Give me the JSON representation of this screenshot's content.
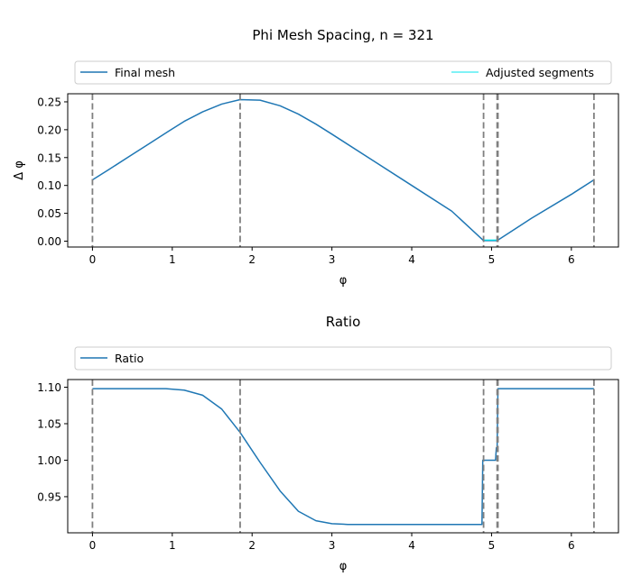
{
  "chart_data": [
    {
      "type": "line",
      "title": "Phi Mesh Spacing, n = 321",
      "xlabel": "φ",
      "ylabel": "Δ φ",
      "xlim": [
        -0.31,
        6.59
      ],
      "ylim": [
        -0.0105,
        0.2645
      ],
      "xticks": [
        0,
        1,
        2,
        3,
        4,
        5,
        6
      ],
      "yticks": [
        0.0,
        0.05,
        0.1,
        0.15,
        0.2,
        0.25
      ],
      "ytick_decimals": 2,
      "grid": false,
      "legend": {
        "placement": "above-plot",
        "entries": [
          "Final mesh",
          "Adjusted segments"
        ]
      },
      "vlines": [
        0.0,
        1.85,
        4.9,
        5.07,
        5.08,
        6.283
      ],
      "series": [
        {
          "name": "Final mesh",
          "color": "#1f77b4",
          "x": [
            0.0,
            0.2,
            0.45,
            0.7,
            0.95,
            1.15,
            1.38,
            1.62,
            1.85,
            2.1,
            2.35,
            2.58,
            2.8,
            3.0,
            3.5,
            4.0,
            4.5,
            4.9,
            5.07,
            5.5,
            6.0,
            6.283
          ],
          "y": [
            0.11,
            0.128,
            0.151,
            0.174,
            0.197,
            0.215,
            0.232,
            0.246,
            0.254,
            0.253,
            0.243,
            0.228,
            0.21,
            0.192,
            0.146,
            0.1,
            0.054,
            0.001,
            0.001,
            0.041,
            0.084,
            0.11
          ]
        },
        {
          "name": "Adjusted segments",
          "color": "#00e5ee",
          "x": [
            4.9,
            5.07
          ],
          "y": [
            0.002,
            0.002
          ]
        }
      ]
    },
    {
      "type": "line",
      "title": "Ratio",
      "xlabel": "φ",
      "ylabel": "",
      "xlim": [
        -0.31,
        6.59
      ],
      "ylim": [
        0.9005,
        1.1105
      ],
      "xticks": [
        0,
        1,
        2,
        3,
        4,
        5,
        6
      ],
      "yticks": [
        0.95,
        1.0,
        1.05,
        1.1
      ],
      "ytick_decimals": 2,
      "grid": false,
      "legend": {
        "placement": "above-plot",
        "entries": [
          "Ratio"
        ]
      },
      "vlines": [
        0.0,
        1.85,
        4.9,
        5.07,
        5.08,
        6.283
      ],
      "series": [
        {
          "name": "Ratio",
          "color": "#1f77b4",
          "x": [
            0.0,
            0.5,
            0.92,
            1.15,
            1.38,
            1.62,
            1.85,
            2.1,
            2.35,
            2.58,
            2.8,
            3.0,
            3.2,
            4.0,
            4.5,
            4.88,
            4.89,
            5.05,
            5.06,
            5.07,
            5.08,
            5.5,
            6.0,
            6.283
          ],
          "y": [
            1.098,
            1.098,
            1.098,
            1.096,
            1.089,
            1.07,
            1.038,
            0.997,
            0.958,
            0.93,
            0.917,
            0.913,
            0.912,
            0.912,
            0.912,
            0.912,
            1.0,
            1.0,
            1.017,
            1.017,
            1.098,
            1.098,
            1.098,
            1.098
          ]
        }
      ]
    }
  ]
}
